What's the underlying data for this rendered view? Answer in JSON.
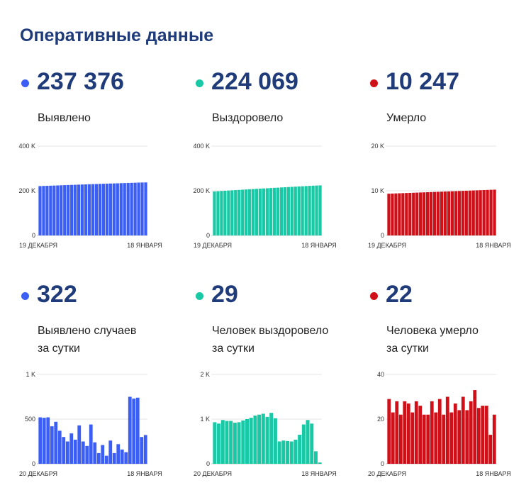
{
  "title": "Оперативные данные",
  "cards": [
    {
      "value": "237 376",
      "label": "Выявлено",
      "color": "#3b5ff5"
    },
    {
      "value": "224 069",
      "label": "Выздоровело",
      "color": "#19c8a4"
    },
    {
      "value": "10 247",
      "label": "Умерло",
      "color": "#d01018"
    },
    {
      "value": "322",
      "label": "Выявлено случаев\nза сутки",
      "color": "#3b5ff5"
    },
    {
      "value": "29",
      "label": "Человек выздоровело\nза сутки",
      "color": "#19c8a4"
    },
    {
      "value": "22",
      "label": "Человека умерло\nза сутки",
      "color": "#d01018"
    }
  ],
  "chart_data": [
    {
      "type": "bar",
      "color": "#3b5ff5",
      "y_ticks": [
        {
          "value": 0,
          "label": "0"
        },
        {
          "value": 200000,
          "label": "200 K"
        },
        {
          "value": 400000,
          "label": "400 K"
        }
      ],
      "ylim": [
        0,
        400000
      ],
      "x_start": "19 ДЕКАБРЯ",
      "x_end": "18 ЯНВАРЯ",
      "values": [
        221000,
        221600,
        222200,
        222800,
        223300,
        223900,
        224500,
        225100,
        225700,
        226300,
        226800,
        227400,
        228000,
        228600,
        229200,
        229700,
        230300,
        230800,
        231400,
        231900,
        232400,
        232900,
        233400,
        233900,
        234400,
        235000,
        235500,
        236000,
        236600,
        237000,
        237376
      ]
    },
    {
      "type": "bar",
      "color": "#19c8a4",
      "y_ticks": [
        {
          "value": 0,
          "label": "0"
        },
        {
          "value": 200000,
          "label": "200 K"
        },
        {
          "value": 400000,
          "label": "400 K"
        }
      ],
      "ylim": [
        0,
        400000
      ],
      "x_start": "19 ДЕКАБРЯ",
      "x_end": "18 ЯНВАРЯ",
      "values": [
        197000,
        198000,
        199000,
        200000,
        201000,
        202000,
        203000,
        203900,
        204900,
        205800,
        206800,
        207700,
        208600,
        209500,
        210400,
        211300,
        212200,
        213100,
        213900,
        214800,
        215700,
        216700,
        217500,
        218400,
        219300,
        220200,
        221000,
        221900,
        222800,
        223500,
        224069
      ]
    },
    {
      "type": "bar",
      "color": "#d01018",
      "y_ticks": [
        {
          "value": 0,
          "label": "0"
        },
        {
          "value": 10000,
          "label": "10 K"
        },
        {
          "value": 20000,
          "label": "20 K"
        }
      ],
      "ylim": [
        0,
        20000
      ],
      "x_start": "19 ДЕКАБРЯ",
      "x_end": "18 ЯНВАРЯ",
      "values": [
        9350,
        9380,
        9410,
        9440,
        9470,
        9500,
        9530,
        9560,
        9590,
        9620,
        9650,
        9680,
        9710,
        9740,
        9770,
        9800,
        9830,
        9860,
        9890,
        9920,
        9950,
        9980,
        10010,
        10040,
        10070,
        10100,
        10130,
        10160,
        10190,
        10220,
        10247
      ]
    },
    {
      "type": "bar",
      "color": "#3b5ff5",
      "y_ticks": [
        {
          "value": 0,
          "label": "0"
        },
        {
          "value": 500,
          "label": "500"
        },
        {
          "value": 1000,
          "label": "1 K"
        }
      ],
      "ylim": [
        0,
        1000
      ],
      "x_start": "20 ДЕКАБРЯ",
      "x_end": "18 ЯНВАРЯ",
      "values": [
        520,
        515,
        520,
        420,
        470,
        370,
        300,
        250,
        340,
        270,
        430,
        250,
        200,
        440,
        240,
        120,
        210,
        90,
        260,
        120,
        220,
        160,
        130,
        750,
        730,
        740,
        300,
        322
      ]
    },
    {
      "type": "bar",
      "color": "#19c8a4",
      "y_ticks": [
        {
          "value": 0,
          "label": "0"
        },
        {
          "value": 1000,
          "label": "1 K"
        },
        {
          "value": 2000,
          "label": "2 K"
        }
      ],
      "ylim": [
        0,
        2000
      ],
      "x_start": "20 ДЕКАБРЯ",
      "x_end": "18 ЯНВАРЯ",
      "values": [
        930,
        900,
        980,
        960,
        960,
        920,
        930,
        970,
        1000,
        1030,
        1080,
        1100,
        1120,
        1050,
        1140,
        1020,
        500,
        520,
        510,
        500,
        540,
        650,
        880,
        980,
        900,
        280,
        29
      ]
    },
    {
      "type": "bar",
      "color": "#d01018",
      "y_ticks": [
        {
          "value": 0,
          "label": "0"
        },
        {
          "value": 20,
          "label": "20"
        },
        {
          "value": 40,
          "label": "40"
        }
      ],
      "ylim": [
        0,
        40
      ],
      "x_start": "20 ДЕКАБРЯ",
      "x_end": "18 ЯНВАРЯ",
      "values": [
        29,
        23,
        28,
        22,
        28,
        27,
        23,
        28,
        26,
        22,
        22,
        28,
        23,
        29,
        22,
        30,
        23,
        27,
        24,
        30,
        24,
        28,
        33,
        25,
        26,
        26,
        13,
        22
      ]
    }
  ]
}
